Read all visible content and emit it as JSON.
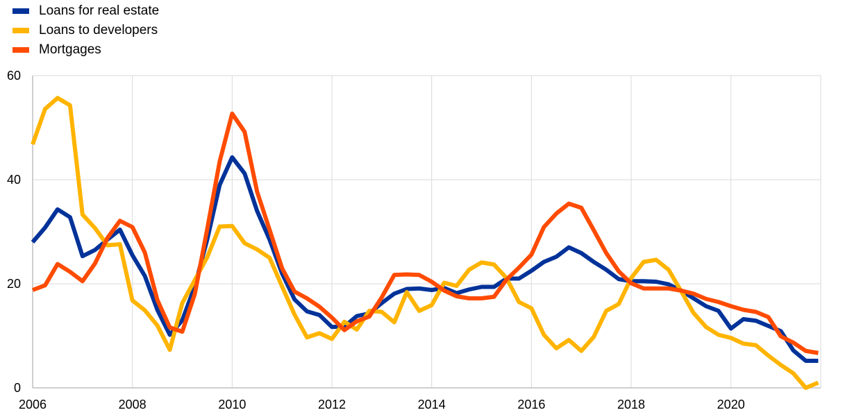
{
  "chart_data": {
    "type": "line",
    "title": "",
    "xlabel": "",
    "ylabel": "",
    "xlim": [
      2006,
      2021.8
    ],
    "ylim": [
      0,
      60
    ],
    "xticks": [
      "2006",
      "2008",
      "2010",
      "2012",
      "2014",
      "2016",
      "2018",
      "2020"
    ],
    "yticks": [
      "0",
      "20",
      "40",
      "60"
    ],
    "grid": "vertical and horizontal",
    "legend_position": "top-left",
    "x": [
      2006.0,
      2006.25,
      2006.5,
      2006.75,
      2007.0,
      2007.25,
      2007.5,
      2007.75,
      2008.0,
      2008.25,
      2008.5,
      2008.75,
      2009.0,
      2009.25,
      2009.5,
      2009.75,
      2010.0,
      2010.25,
      2010.5,
      2010.75,
      2011.0,
      2011.25,
      2011.5,
      2011.75,
      2012.0,
      2012.25,
      2012.5,
      2012.75,
      2013.0,
      2013.25,
      2013.5,
      2013.75,
      2014.0,
      2014.25,
      2014.5,
      2014.75,
      2015.0,
      2015.25,
      2015.5,
      2015.75,
      2016.0,
      2016.25,
      2016.5,
      2016.75,
      2017.0,
      2017.25,
      2017.5,
      2017.75,
      2018.0,
      2018.25,
      2018.5,
      2018.75,
      2019.0,
      2019.25,
      2019.5,
      2019.75,
      2020.0,
      2020.25,
      2020.5,
      2020.75,
      2021.0,
      2021.25,
      2021.5,
      2021.75
    ],
    "series": [
      {
        "name": "Loans for real estate",
        "color": "#003299",
        "values": [
          28.0,
          30.8,
          34.3,
          32.8,
          25.3,
          26.5,
          28.5,
          30.4,
          25.5,
          21.5,
          15.0,
          10.2,
          13.0,
          19.5,
          28.5,
          39.0,
          44.3,
          41.2,
          34.0,
          28.5,
          22.0,
          17.0,
          14.7,
          14.0,
          11.7,
          11.8,
          13.8,
          14.3,
          16.3,
          18.1,
          19.0,
          19.1,
          18.8,
          19.2,
          18.2,
          18.9,
          19.4,
          19.4,
          21.0,
          21.0,
          22.5,
          24.2,
          25.2,
          27.0,
          25.9,
          24.2,
          22.7,
          20.9,
          20.5,
          20.5,
          20.4,
          19.9,
          18.7,
          17.2,
          15.7,
          14.8,
          11.4,
          13.2,
          12.9,
          11.9,
          10.9,
          7.2,
          5.2,
          5.2
        ]
      },
      {
        "name": "Loans to developers",
        "color": "#FFB400",
        "values": [
          46.8,
          53.6,
          55.7,
          54.3,
          33.3,
          30.7,
          27.4,
          27.6,
          16.8,
          14.9,
          12.0,
          7.3,
          16.3,
          20.7,
          25.1,
          31.0,
          31.1,
          27.8,
          26.6,
          25.0,
          19.5,
          14.1,
          9.7,
          10.5,
          9.4,
          12.7,
          11.2,
          14.8,
          14.6,
          12.6,
          18.4,
          14.8,
          15.9,
          20.2,
          19.6,
          22.7,
          24.1,
          23.7,
          21.1,
          16.5,
          15.3,
          10.2,
          7.6,
          9.2,
          7.1,
          9.8,
          14.8,
          16.1,
          21.1,
          24.2,
          24.6,
          22.7,
          18.6,
          14.4,
          11.7,
          10.2,
          9.6,
          8.5,
          8.2,
          6.2,
          4.4,
          2.8,
          0.0,
          1.0
        ]
      },
      {
        "name": "Mortgages",
        "color": "#FF4B00",
        "values": [
          18.8,
          19.7,
          23.8,
          22.3,
          20.5,
          23.9,
          28.8,
          32.1,
          30.9,
          26.0,
          16.9,
          11.6,
          10.8,
          18.0,
          30.5,
          43.5,
          52.7,
          49.2,
          37.7,
          30.4,
          23.0,
          18.5,
          17.2,
          15.6,
          13.5,
          11.1,
          12.8,
          13.7,
          17.4,
          21.7,
          21.8,
          21.7,
          20.4,
          18.7,
          17.6,
          17.2,
          17.2,
          17.5,
          20.8,
          23.1,
          25.6,
          30.9,
          33.5,
          35.4,
          34.6,
          30.3,
          25.9,
          22.4,
          20.1,
          19.1,
          19.1,
          19.1,
          18.7,
          18.1,
          17.1,
          16.5,
          15.7,
          15.0,
          14.6,
          13.6,
          9.9,
          8.7,
          7.1,
          6.7
        ]
      }
    ]
  }
}
